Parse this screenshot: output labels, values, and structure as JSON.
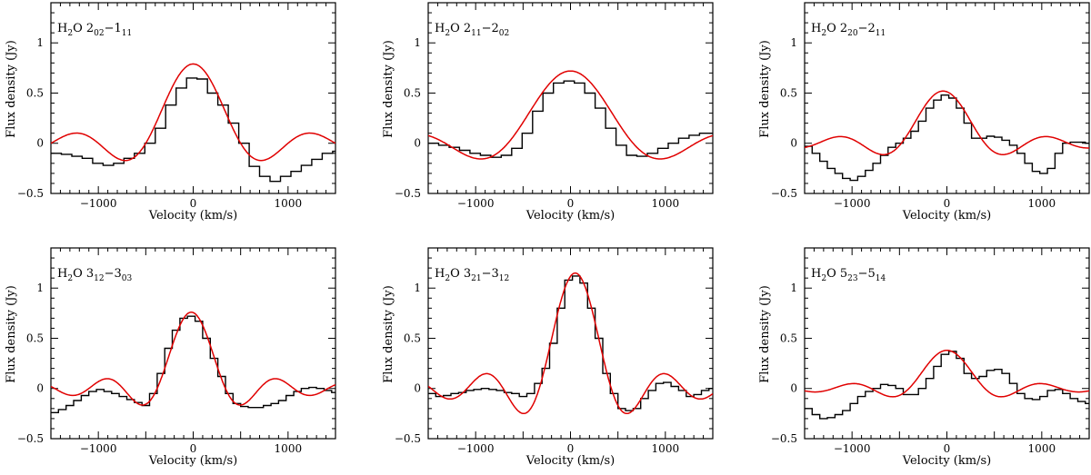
{
  "figure": {
    "xlabel": "Velocity (km/s)",
    "ylabel": "Flux density (Jy)",
    "colors": {
      "observed": "#000000",
      "model": "#e00000"
    }
  },
  "chart_data": [
    {
      "type": "line",
      "title": "H2O 2_02-1_11",
      "label": {
        "species": "H",
        "sub1": "2",
        "mol": "O ",
        "lev1": "2",
        "lev1sub": "02",
        "dash": "−",
        "lev2": "1",
        "lev2sub": "11"
      },
      "xlabel": "Velocity (km/s)",
      "ylabel": "Flux density (Jy)",
      "xlim": [
        -1500,
        1500
      ],
      "ylim": [
        -0.5,
        1.4
      ],
      "xticks": [
        -1000,
        0,
        1000
      ],
      "xticklabels": [
        "−1000",
        "0",
        "1000"
      ],
      "yticks": [
        -0.5,
        0,
        0.5,
        1
      ],
      "yticklabels": [
        "−0.5",
        "0",
        "0.5",
        "1"
      ],
      "series": [
        {
          "name": "observed",
          "style": "step",
          "step": 110,
          "x": [
            -1500,
            -1390,
            -1280,
            -1170,
            -1060,
            -950,
            -840,
            -730,
            -620,
            -510,
            -400,
            -290,
            -180,
            -70,
            40,
            150,
            260,
            370,
            480,
            590,
            700,
            810,
            920,
            1030,
            1140,
            1250,
            1360,
            1470
          ],
          "y": [
            -0.1,
            -0.11,
            -0.13,
            -0.15,
            -0.2,
            -0.22,
            -0.2,
            -0.15,
            -0.1,
            0.0,
            0.15,
            0.38,
            0.55,
            0.65,
            0.64,
            0.5,
            0.38,
            0.2,
            0.0,
            -0.23,
            -0.33,
            -0.38,
            -0.33,
            -0.28,
            -0.22,
            -0.16,
            -0.1,
            -0.08
          ]
        },
        {
          "name": "model",
          "style": "sinc",
          "amplitude": 0.79,
          "center": 0,
          "width": 250
        }
      ]
    },
    {
      "type": "line",
      "title": "H2O 2_11-2_02",
      "label": {
        "species": "H",
        "sub1": "2",
        "mol": "O ",
        "lev1": "2",
        "lev1sub": "11",
        "dash": "−",
        "lev2": "2",
        "lev2sub": "02"
      },
      "xlabel": "Velocity (km/s)",
      "ylabel": "Flux density (Jy)",
      "xlim": [
        -1500,
        1500
      ],
      "ylim": [
        -0.5,
        1.4
      ],
      "xticks": [
        -1000,
        0,
        1000
      ],
      "xticklabels": [
        "−1000",
        "0",
        "1000"
      ],
      "yticks": [
        -0.5,
        0,
        0.5,
        1
      ],
      "yticklabels": [
        "−0.5",
        "0",
        "0.5",
        "1"
      ],
      "series": [
        {
          "name": "observed",
          "style": "step",
          "step": 110,
          "x": [
            -1500,
            -1390,
            -1280,
            -1170,
            -1060,
            -950,
            -840,
            -730,
            -620,
            -510,
            -400,
            -290,
            -180,
            -70,
            40,
            150,
            260,
            370,
            480,
            590,
            700,
            810,
            920,
            1030,
            1140,
            1250,
            1360,
            1470
          ],
          "y": [
            0.0,
            -0.02,
            -0.04,
            -0.07,
            -0.1,
            -0.12,
            -0.14,
            -0.12,
            -0.05,
            0.1,
            0.32,
            0.5,
            0.6,
            0.62,
            0.6,
            0.5,
            0.35,
            0.15,
            -0.02,
            -0.12,
            -0.13,
            -0.1,
            -0.05,
            0.0,
            0.05,
            0.08,
            0.1,
            0.1
          ]
        },
        {
          "name": "model",
          "style": "sinc",
          "amplitude": 0.72,
          "center": 0,
          "width": 330
        }
      ]
    },
    {
      "type": "line",
      "title": "H2O 2_20-2_11",
      "label": {
        "species": "H",
        "sub1": "2",
        "mol": "O ",
        "lev1": "2",
        "lev1sub": "20",
        "dash": "−",
        "lev2": "2",
        "lev2sub": "11"
      },
      "xlabel": "Velocity (km/s)",
      "ylabel": "Flux density (Jy)",
      "xlim": [
        -1500,
        1500
      ],
      "ylim": [
        -0.5,
        1.4
      ],
      "xticks": [
        -1000,
        0,
        1000
      ],
      "xticklabels": [
        "−1000",
        "0",
        "1000"
      ],
      "yticks": [
        -0.5,
        0,
        0.5,
        1
      ],
      "yticklabels": [
        "−0.5",
        "0",
        "0.5",
        "1"
      ],
      "series": [
        {
          "name": "observed",
          "style": "step",
          "step": 80,
          "x": [
            -1500,
            -1420,
            -1340,
            -1260,
            -1180,
            -1100,
            -1020,
            -940,
            -860,
            -780,
            -700,
            -620,
            -540,
            -460,
            -380,
            -300,
            -220,
            -140,
            -60,
            20,
            100,
            180,
            260,
            340,
            420,
            500,
            580,
            660,
            740,
            820,
            900,
            980,
            1060,
            1140,
            1220,
            1300,
            1380,
            1460
          ],
          "y": [
            -0.03,
            -0.1,
            -0.18,
            -0.25,
            -0.3,
            -0.35,
            -0.37,
            -0.33,
            -0.27,
            -0.2,
            -0.12,
            -0.04,
            0.0,
            0.05,
            0.12,
            0.22,
            0.35,
            0.43,
            0.48,
            0.45,
            0.35,
            0.2,
            0.05,
            0.05,
            0.07,
            0.06,
            0.03,
            -0.02,
            -0.1,
            -0.2,
            -0.28,
            -0.3,
            -0.25,
            -0.1,
            0.0,
            0.01,
            0.01,
            0.0
          ]
        },
        {
          "name": "model",
          "style": "sinc",
          "amplitude": 0.52,
          "center": -40,
          "width": 220
        }
      ]
    },
    {
      "type": "line",
      "title": "H2O 3_12-3_03",
      "label": {
        "species": "H",
        "sub1": "2",
        "mol": "O ",
        "lev1": "3",
        "lev1sub": "12",
        "dash": "−",
        "lev2": "3",
        "lev2sub": "03"
      },
      "xlabel": "Velocity (km/s)",
      "ylabel": "Flux density (Jy)",
      "xlim": [
        -1500,
        1500
      ],
      "ylim": [
        -0.5,
        1.4
      ],
      "xticks": [
        -1000,
        0,
        1000
      ],
      "xticklabels": [
        "−1000",
        "0",
        "1000"
      ],
      "yticks": [
        -0.5,
        0,
        0.5,
        1
      ],
      "yticklabels": [
        "−0.5",
        "0",
        "0.5",
        "1"
      ],
      "series": [
        {
          "name": "observed",
          "style": "step",
          "step": 80,
          "x": [
            -1500,
            -1420,
            -1340,
            -1260,
            -1180,
            -1100,
            -1020,
            -940,
            -860,
            -780,
            -700,
            -620,
            -540,
            -460,
            -380,
            -300,
            -220,
            -140,
            -60,
            20,
            100,
            180,
            260,
            340,
            420,
            500,
            580,
            660,
            740,
            820,
            900,
            980,
            1060,
            1140,
            1220,
            1300,
            1380,
            1460
          ],
          "y": [
            -0.24,
            -0.21,
            -0.17,
            -0.12,
            -0.07,
            -0.03,
            -0.01,
            -0.03,
            -0.05,
            -0.08,
            -0.11,
            -0.14,
            -0.17,
            -0.05,
            0.15,
            0.4,
            0.58,
            0.7,
            0.72,
            0.67,
            0.5,
            0.3,
            0.12,
            -0.05,
            -0.15,
            -0.18,
            -0.19,
            -0.19,
            -0.17,
            -0.15,
            -0.12,
            -0.07,
            -0.03,
            0.0,
            0.01,
            0.0,
            -0.02,
            -0.04
          ]
        },
        {
          "name": "model",
          "style": "sinc",
          "amplitude": 0.76,
          "center": -20,
          "width": 180
        }
      ]
    },
    {
      "type": "line",
      "title": "H2O 3_21-3_12",
      "label": {
        "species": "H",
        "sub1": "2",
        "mol": "O ",
        "lev1": "3",
        "lev1sub": "21",
        "dash": "−",
        "lev2": "3",
        "lev2sub": "12"
      },
      "xlabel": "Velocity (km/s)",
      "ylabel": "Flux density (Jy)",
      "xlim": [
        -1500,
        1500
      ],
      "ylim": [
        -0.5,
        1.4
      ],
      "xticks": [
        -1000,
        0,
        1000
      ],
      "xticklabels": [
        "−1000",
        "0",
        "1000"
      ],
      "yticks": [
        -0.5,
        0,
        0.5,
        1
      ],
      "yticklabels": [
        "−0.5",
        "0",
        "0.5",
        "1"
      ],
      "series": [
        {
          "name": "observed",
          "style": "step",
          "step": 80,
          "x": [
            -1500,
            -1420,
            -1340,
            -1260,
            -1180,
            -1100,
            -1020,
            -940,
            -860,
            -780,
            -700,
            -620,
            -540,
            -460,
            -380,
            -300,
            -220,
            -140,
            -60,
            20,
            100,
            180,
            260,
            340,
            420,
            500,
            580,
            660,
            740,
            820,
            900,
            980,
            1060,
            1140,
            1220,
            1300,
            1380,
            1460
          ],
          "y": [
            -0.05,
            -0.08,
            -0.07,
            -0.05,
            -0.04,
            -0.02,
            -0.01,
            0.0,
            -0.01,
            -0.02,
            -0.04,
            -0.05,
            -0.08,
            -0.05,
            0.05,
            0.2,
            0.45,
            0.8,
            1.08,
            1.12,
            1.05,
            0.8,
            0.5,
            0.15,
            -0.05,
            -0.2,
            -0.22,
            -0.2,
            -0.1,
            -0.02,
            0.05,
            0.06,
            0.02,
            -0.02,
            -0.08,
            -0.06,
            -0.02,
            0.0
          ]
        },
        {
          "name": "model",
          "style": "sinc",
          "amplitude": 1.15,
          "center": 50,
          "width": 190
        }
      ]
    },
    {
      "type": "line",
      "title": "H2O 5_23-5_14",
      "label": {
        "species": "H",
        "sub1": "2",
        "mol": "O ",
        "lev1": "5",
        "lev1sub": "23",
        "dash": "−",
        "lev2": "5",
        "lev2sub": "14"
      },
      "xlabel": "Velocity (km/s)",
      "ylabel": "Flux density (Jy)",
      "xlim": [
        -1500,
        1500
      ],
      "ylim": [
        -0.5,
        1.4
      ],
      "xticks": [
        -1000,
        0,
        1000
      ],
      "xticklabels": [
        "−1000",
        "0",
        "1000"
      ],
      "yticks": [
        -0.5,
        0,
        0.5,
        1
      ],
      "yticklabels": [
        "−0.5",
        "0",
        "0.5",
        "1"
      ],
      "series": [
        {
          "name": "observed",
          "style": "step",
          "step": 80,
          "x": [
            -1500,
            -1420,
            -1340,
            -1260,
            -1180,
            -1100,
            -1020,
            -940,
            -860,
            -780,
            -700,
            -620,
            -540,
            -460,
            -380,
            -300,
            -220,
            -140,
            -60,
            20,
            100,
            180,
            260,
            340,
            420,
            500,
            580,
            660,
            740,
            820,
            900,
            980,
            1060,
            1140,
            1220,
            1300,
            1380,
            1460
          ],
          "y": [
            -0.2,
            -0.26,
            -0.3,
            -0.29,
            -0.26,
            -0.22,
            -0.15,
            -0.08,
            -0.03,
            0.0,
            0.04,
            0.03,
            0.0,
            -0.06,
            -0.06,
            0.0,
            0.1,
            0.22,
            0.34,
            0.37,
            0.3,
            0.15,
            0.1,
            0.12,
            0.18,
            0.19,
            0.15,
            0.05,
            -0.05,
            -0.1,
            -0.11,
            -0.08,
            -0.02,
            -0.01,
            -0.05,
            -0.1,
            -0.13,
            -0.15
          ]
        },
        {
          "name": "model",
          "style": "sinc",
          "amplitude": 0.38,
          "center": 0,
          "width": 200
        }
      ]
    }
  ]
}
